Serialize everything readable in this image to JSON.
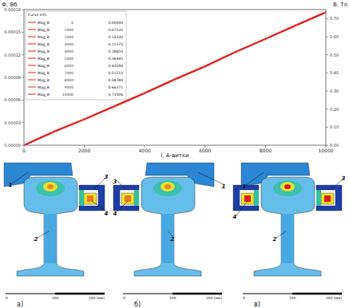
{
  "chart_data": {
    "type": "line",
    "y_label": "Ф, Вб",
    "y2_label": "B, Тл",
    "x_label": "I, А-витки",
    "legend_title": "Curve Info",
    "legend": "top-left",
    "grid": false,
    "x": [
      0,
      1000,
      2000,
      3000,
      4000,
      5000,
      6000,
      7000,
      8000,
      9000,
      10000
    ],
    "series": [
      {
        "name": "Mag_B",
        "color": "#e02020",
        "axis": "y2",
        "marker": "circle",
        "values": [
          0.0,
          0.07535,
          0.1433,
          0.21575,
          0.2885,
          0.36445,
          0.43594,
          0.5151,
          0.58789,
          0.66271,
          0.73506
        ]
      }
    ],
    "xlim": [
      0,
      10000
    ],
    "xticks": [
      0,
      2000,
      4000,
      6000,
      8000,
      10000
    ],
    "ylim": [
      0,
      0.00018
    ],
    "yticks": [
      {
        "value": 0,
        "label": "0.00000"
      },
      {
        "value": 3e-05,
        "label": "0.00003"
      },
      {
        "value": 6e-05,
        "label": "0.00006"
      },
      {
        "value": 9e-05,
        "label": "0.00009"
      },
      {
        "value": 0.00012,
        "label": "0.00012"
      },
      {
        "value": 0.00015,
        "label": "0.00015"
      },
      {
        "value": 0.00018,
        "label": "0.00018"
      }
    ],
    "y2lim": [
      0,
      0.75
    ],
    "y2ticks": [
      {
        "value": 0,
        "label": "0.00"
      },
      {
        "value": 0.1,
        "label": "0.10"
      },
      {
        "value": 0.2,
        "label": "0.20"
      },
      {
        "value": 0.3,
        "label": "0.30"
      },
      {
        "value": 0.4,
        "label": "0.40"
      },
      {
        "value": 0.5,
        "label": "0.50"
      },
      {
        "value": 0.6,
        "label": "0.60"
      },
      {
        "value": 0.7,
        "label": "0.70"
      }
    ]
  },
  "figures": {
    "panels": [
      {
        "caption": "а)",
        "labels": [
          "1",
          "2",
          "3",
          "4"
        ]
      },
      {
        "caption": "б)",
        "labels": [
          "1",
          "2",
          "3",
          "4"
        ]
      },
      {
        "caption": "в)",
        "labels": [
          "1",
          "2",
          "3",
          "4"
        ]
      }
    ],
    "scale_labels": [
      "0",
      "100",
      "200 (мм)"
    ]
  }
}
